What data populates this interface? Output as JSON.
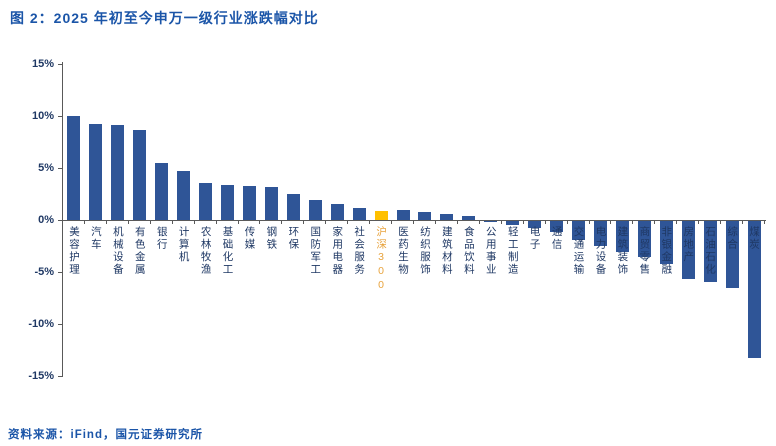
{
  "header": {
    "title": "图 2：2025 年初至今申万一级行业涨跌幅对比"
  },
  "footer": {
    "source": "资料来源：iFind，国元证券研究所"
  },
  "chart_data": {
    "type": "bar",
    "title": "2025 年初至今申万一级行业涨跌幅对比",
    "xlabel": "",
    "ylabel": "",
    "ylim": [
      -15,
      15
    ],
    "grid": false,
    "legend": "none",
    "yticks": [
      "15%",
      "10%",
      "5%",
      "0%",
      "-5%",
      "-10%",
      "-15%"
    ],
    "ytick_values": [
      15,
      10,
      5,
      0,
      -5,
      -10,
      -15
    ],
    "categories": [
      "美容护理",
      "汽车",
      "机械设备",
      "有色金属",
      "银行",
      "计算机",
      "农林牧渔",
      "基础化工",
      "传媒",
      "钢铁",
      "环保",
      "国防军工",
      "家用电器",
      "社会服务",
      "沪深300",
      "医药生物",
      "纺织服饰",
      "建筑材料",
      "食品饮料",
      "公用事业",
      "轻工制造",
      "电子",
      "通信",
      "交通运输",
      "电力设备",
      "建筑装饰",
      "商贸零售",
      "非银金融",
      "房地产",
      "石油石化",
      "综合",
      "煤炭"
    ],
    "values": [
      10.0,
      9.2,
      9.1,
      8.7,
      5.5,
      4.7,
      3.6,
      3.4,
      3.3,
      3.2,
      2.5,
      1.9,
      1.5,
      1.2,
      0.9,
      1.0,
      0.8,
      0.6,
      0.4,
      -0.1,
      -0.4,
      -0.7,
      -1.1,
      -1.8,
      -2.4,
      -3.0,
      -3.5,
      -4.1,
      -5.6,
      -5.9,
      -6.4,
      -13.2
    ],
    "highlight_category": "沪深300",
    "highlight_index": 14,
    "bar_color": "#2F5597",
    "highlight_color": "#FFC000",
    "label_color": "#1F3864",
    "highlight_label_color": "#E8A33D",
    "axis_color": "#595959",
    "title_color": "#1B55A8"
  }
}
